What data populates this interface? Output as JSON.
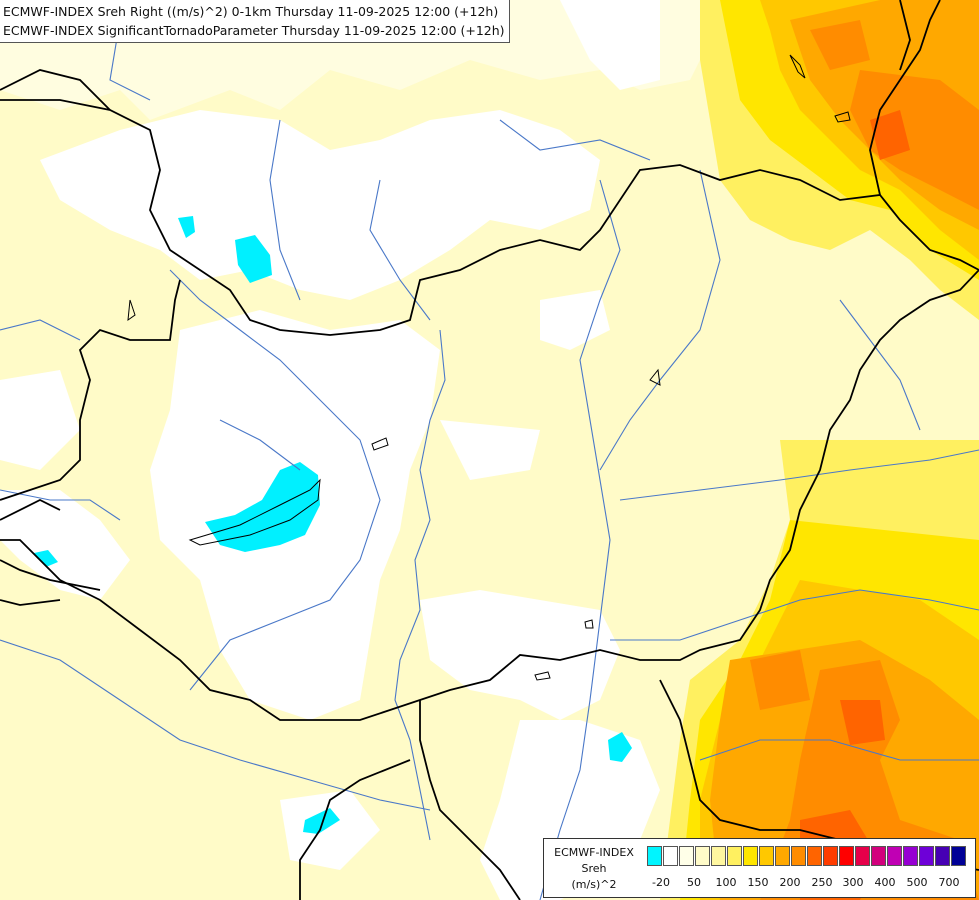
{
  "title": {
    "line1": "ECMWF-INDEX Sreh Right ((m/s)^2) 0-1km Thursday 11-09-2025 12:00 (+12h)",
    "line2": "ECMWF-INDEX SignificantTornadoParameter Thursday 11-09-2025 12:00 (+12h)"
  },
  "legend": {
    "line1": "ECMWF-INDEX",
    "line2": "Sreh",
    "line3": "(m/s)^2",
    "colors": [
      "#00f5ff",
      "#ffffff",
      "#ffffe8",
      "#fffbc8",
      "#fff7a0",
      "#fff060",
      "#ffe600",
      "#ffc800",
      "#ffa800",
      "#ff8c00",
      "#ff6400",
      "#ff3c00",
      "#ff0000",
      "#e6004a",
      "#d2007d",
      "#c000b4",
      "#9600d2",
      "#6e00d8",
      "#4600b4",
      "#000096"
    ],
    "ticks": [
      "-20",
      "50",
      "100",
      "150",
      "200",
      "250",
      "300",
      "400",
      "500",
      "700"
    ]
  },
  "colors": {
    "light_yellow": "#fffbc8",
    "pale_yellow": "#fffde0",
    "yellow": "#fff060",
    "gold": "#ffe600",
    "orange": "#ffb400",
    "dark_orange": "#ff8c00",
    "red_orange": "#ff6a00",
    "cyan": "#00f0ff",
    "border": "#000000",
    "river": "#4a78c8"
  }
}
